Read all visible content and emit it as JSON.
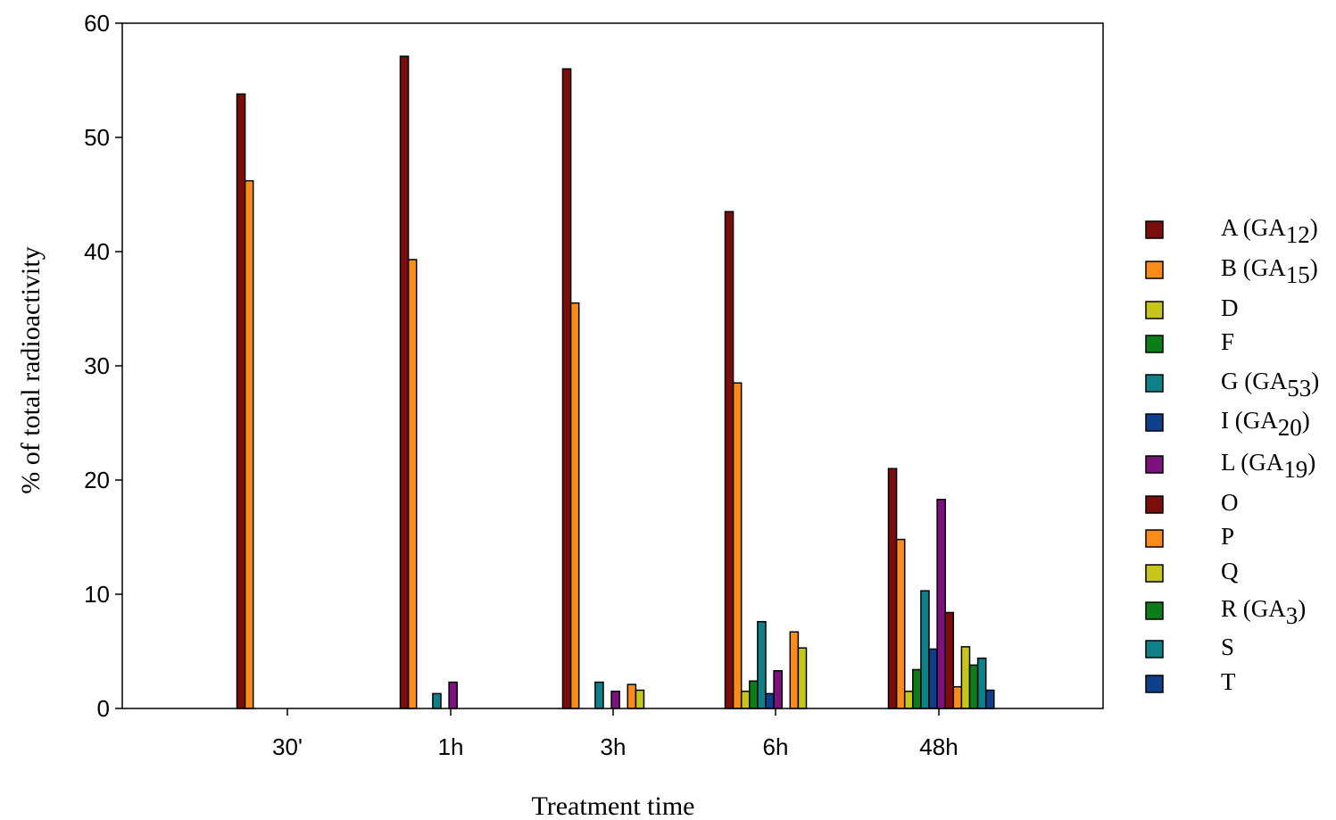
{
  "chart_data": {
    "type": "bar",
    "xlabel": "Treatment time",
    "ylabel": "% of total radioactivity",
    "ylim": [
      0,
      60
    ],
    "yticks": [
      0,
      10,
      20,
      30,
      40,
      50,
      60
    ],
    "categories": [
      "30'",
      "1h",
      "3h",
      "6h",
      "48h"
    ],
    "grid": false,
    "legend_position": "right",
    "series": [
      {
        "name": "A (GA12)",
        "base": "A (GA",
        "sub": "12",
        "close": ")",
        "color": "#7b0d0d",
        "values": [
          53.8,
          57.1,
          56.0,
          43.5,
          21.0
        ]
      },
      {
        "name": "B (GA15)",
        "base": "B (GA",
        "sub": "15",
        "close": ")",
        "color": "#fb8c1a",
        "values": [
          46.2,
          39.3,
          35.5,
          28.5,
          14.8
        ]
      },
      {
        "name": "D",
        "base": "D",
        "sub": "",
        "close": "",
        "color": "#c5c51c",
        "values": [
          0,
          0,
          0,
          1.5,
          1.5
        ]
      },
      {
        "name": "F",
        "base": "F",
        "sub": "",
        "close": "",
        "color": "#0d7d1a",
        "values": [
          0,
          0,
          0,
          2.4,
          3.4
        ]
      },
      {
        "name": "G (GA53)",
        "base": "G (GA",
        "sub": "53",
        "close": ")",
        "color": "#0f7f88",
        "values": [
          0,
          1.3,
          2.3,
          7.6,
          10.3
        ]
      },
      {
        "name": "I (GA20)",
        "base": "I (GA",
        "sub": "20",
        "close": ")",
        "color": "#0e3f8a",
        "values": [
          0,
          0,
          0,
          1.3,
          5.2
        ]
      },
      {
        "name": "L (GA19)",
        "base": "L (GA",
        "sub": "19",
        "close": ")",
        "color": "#7d117d",
        "values": [
          0,
          2.3,
          1.5,
          3.3,
          18.3
        ]
      },
      {
        "name": "O",
        "base": "O",
        "sub": "",
        "close": "",
        "color": "#7b0d0d",
        "values": [
          0,
          0,
          0,
          0,
          8.4
        ]
      },
      {
        "name": "P",
        "base": "P",
        "sub": "",
        "close": "",
        "color": "#fb8c1a",
        "values": [
          0,
          0,
          2.1,
          6.7,
          1.9
        ]
      },
      {
        "name": "Q",
        "base": "Q",
        "sub": "",
        "close": "",
        "color": "#c5c51c",
        "values": [
          0,
          0,
          1.6,
          5.3,
          5.4
        ]
      },
      {
        "name": "R (GA3)",
        "base": "R (GA",
        "sub": "3",
        "close": ")",
        "color": "#0d7d1a",
        "values": [
          0,
          0,
          0,
          0,
          3.8
        ]
      },
      {
        "name": "S",
        "base": "S",
        "sub": "",
        "close": "",
        "color": "#0f7f88",
        "values": [
          0,
          0,
          0,
          0,
          4.4
        ]
      },
      {
        "name": "T",
        "base": "T",
        "sub": "",
        "close": "",
        "color": "#0e3f8a",
        "values": [
          0,
          0,
          0,
          0,
          1.6
        ]
      }
    ]
  }
}
